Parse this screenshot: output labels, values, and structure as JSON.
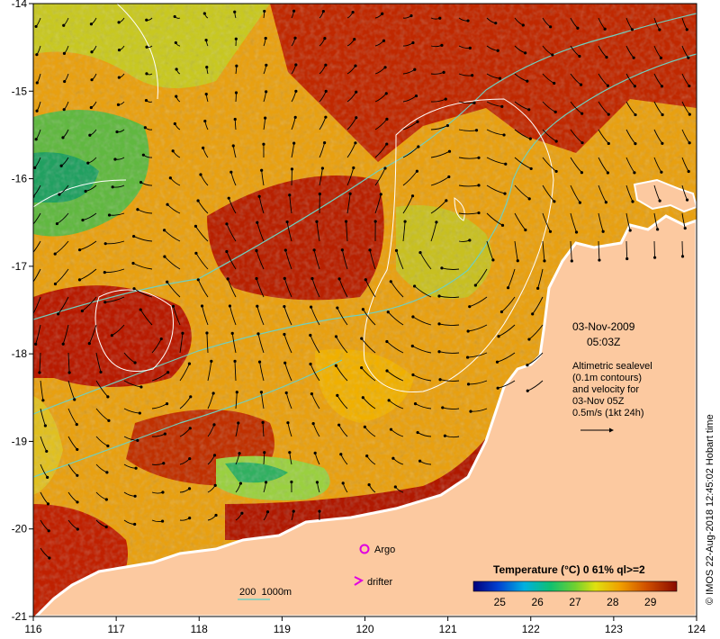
{
  "map": {
    "date": "03-Nov-2009",
    "time": "05:03Z",
    "annotation_lines": [
      "Altimetric sealevel",
      "(0.1m contours)",
      "and velocity for",
      "03-Nov 05Z",
      "0.5m/s (1kt 24h)"
    ],
    "credit": "© IMOS 22-Aug-2018 12:45:02 Hobart time",
    "x_ticks": [
      "116",
      "117",
      "118",
      "119",
      "120",
      "121",
      "122",
      "123",
      "124"
    ],
    "y_ticks": [
      "-14",
      "-15",
      "-16",
      "-17",
      "-18",
      "-19",
      "-20",
      "-21"
    ],
    "legend": {
      "argo": "Argo",
      "drifter": "drifter",
      "depth": "200  1000m"
    },
    "colorbar": {
      "title": "Temperature (°C) 0 61% ql>=2",
      "ticks": [
        "25",
        "26",
        "27",
        "28",
        "29"
      ],
      "range": [
        24.3,
        29.7
      ]
    },
    "colors": {
      "land": "#fcc9a0",
      "warm": "#b81a00",
      "mid": "#e89a00",
      "cool": "#c8d020",
      "cold": "#40b040",
      "contour": "#6fd0c0"
    }
  }
}
